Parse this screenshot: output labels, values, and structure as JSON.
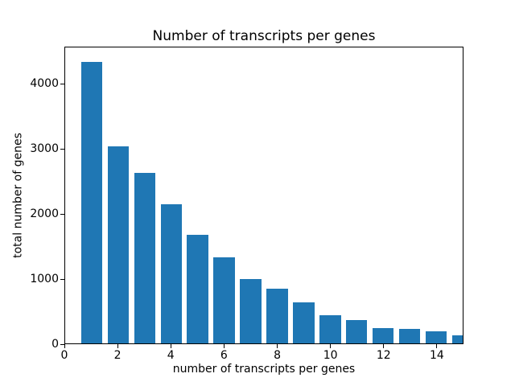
{
  "chart_data": {
    "type": "bar",
    "title": "Number of transcripts per genes",
    "xlabel": "number of transcripts per genes",
    "ylabel": "total number of genes",
    "x": [
      1,
      2,
      3,
      4,
      5,
      6,
      7,
      8,
      9,
      10,
      11,
      12,
      13,
      14,
      15
    ],
    "values": [
      4350,
      3045,
      2630,
      2145,
      1675,
      1330,
      995,
      845,
      630,
      430,
      355,
      240,
      220,
      190,
      125
    ],
    "bar_width": 0.8,
    "bar_color": "#1f77b4",
    "xlim": [
      0,
      15
    ],
    "ylim": [
      0,
      4570
    ],
    "xticks": [
      0,
      2,
      4,
      6,
      8,
      10,
      12,
      14
    ],
    "yticks": [
      0,
      1000,
      2000,
      3000,
      4000
    ],
    "grid": false,
    "legend": null,
    "background_color": "#ffffff",
    "axis_color": "#000000"
  }
}
